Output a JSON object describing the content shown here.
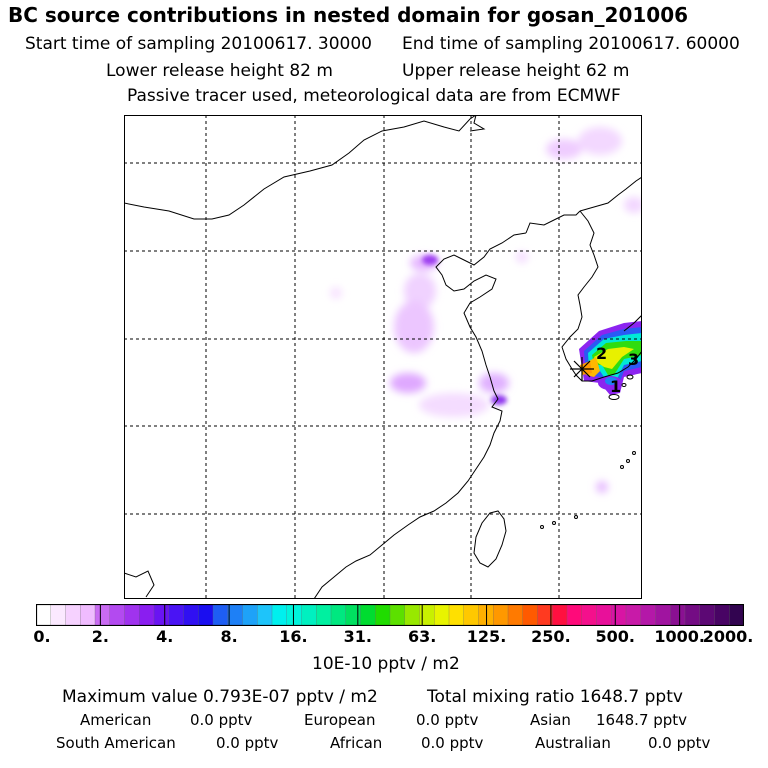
{
  "header": {
    "title": "BC  source contributions in nested domain for gosan_201006",
    "start_label": "Start time of sampling 20100617. 30000",
    "end_label": "End time of sampling 20100617. 60000",
    "lower_label": "Lower release height   82 m",
    "upper_label": "Upper release height   62 m",
    "tracer_label": "Passive tracer used, meteorological data are from ECMWF"
  },
  "map": {
    "receptor_labels": [
      "1",
      "2",
      "3"
    ],
    "receptor_marker": "star-icon"
  },
  "colorbar": {
    "ticks": [
      "0.",
      "2.",
      "4.",
      "8.",
      "16.",
      "31.",
      "63.",
      "125.",
      "250.",
      "500.",
      "1000.",
      "2000."
    ],
    "colors": [
      "#ffffff",
      "#fbe9ff",
      "#f6d2ff",
      "#f0bcff",
      "#c96bf2",
      "#b34af0",
      "#a033ee",
      "#8a1ef0",
      "#6a14f2",
      "#4a14f4",
      "#3010f2",
      "#1a0ef0",
      "#1e5ef4",
      "#1e80f6",
      "#1ea2f8",
      "#1ec4fa",
      "#00f0ee",
      "#00f4dc",
      "#00f0c0",
      "#00f0a0",
      "#00e880",
      "#00e060",
      "#00dc30",
      "#20dc00",
      "#5ce000",
      "#98e800",
      "#c8f000",
      "#e8f400",
      "#ffe000",
      "#ffc800",
      "#ffb000",
      "#ff9800",
      "#ff7a00",
      "#ff5a00",
      "#ff3a20",
      "#ff1040",
      "#ff0a7a",
      "#f4108c",
      "#e8109a",
      "#d814a4",
      "#c81aa8",
      "#b418a8",
      "#a014a0",
      "#8a1092",
      "#740c84",
      "#5c0874",
      "#480464",
      "#320450"
    ],
    "units": "10E-10 pptv / m2"
  },
  "stats": {
    "max_value": "Maximum value  0.793E-07 pptv / m2",
    "total_mixing": "Total mixing ratio     1648.7 pptv",
    "regions": [
      {
        "name": "American",
        "value": "0.0 pptv"
      },
      {
        "name": "European",
        "value": "0.0 pptv"
      },
      {
        "name": "Asian",
        "value": "1648.7 pptv"
      },
      {
        "name": "South American",
        "value": "0.0 pptv"
      },
      {
        "name": "African",
        "value": "0.0 pptv"
      },
      {
        "name": "Australian",
        "value": "0.0 pptv"
      }
    ]
  }
}
